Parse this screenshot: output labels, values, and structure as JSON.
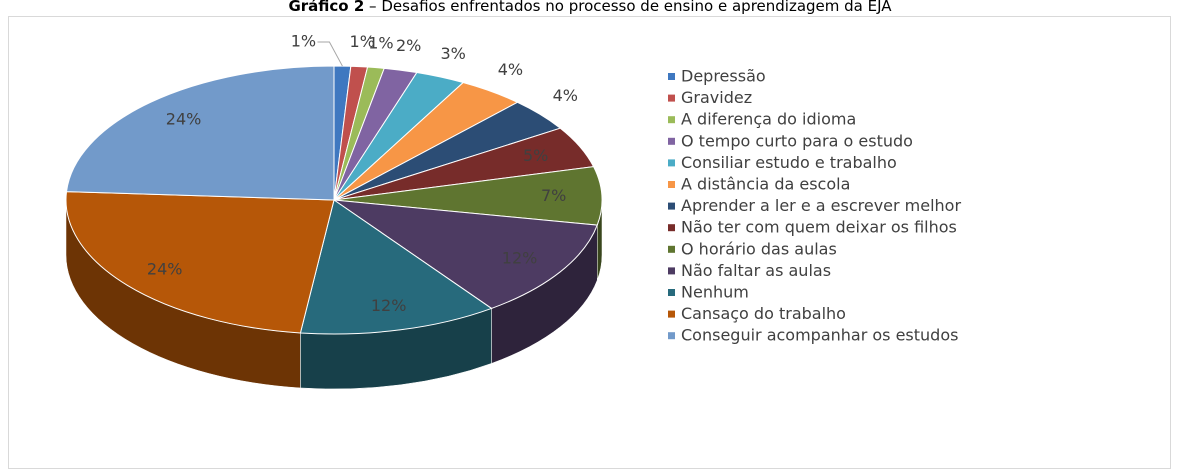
{
  "chart_data": {
    "type": "pie3d",
    "figure_label": "Gráfico 2",
    "title": "– Desafios enfrentados no processo de ensino e aprendizagem da EJA",
    "categories": [
      "Depressão",
      "Gravidez",
      "A diferença do idioma",
      "O tempo curto para o estudo",
      "Consiliar estudo e trabalho",
      "A distância da escola",
      "Aprender a ler e a escrever melhor",
      "Não ter com quem deixar os filhos",
      "O horário das aulas",
      "Não faltar as aulas",
      "Nenhum",
      "Cansaço do trabalho",
      "Conseguir acompanhar os estudos"
    ],
    "values": [
      1,
      1,
      1,
      2,
      3,
      4,
      4,
      5,
      7,
      12,
      12,
      24,
      24
    ],
    "value_labels": [
      "1%",
      "1%",
      "1%",
      "2%",
      "3%",
      "4%",
      "4%",
      "5%",
      "7%",
      "12%",
      "12%",
      "24%",
      "24%"
    ],
    "colors": [
      "#3f78c0",
      "#c0504d",
      "#9bbb59",
      "#8064a2",
      "#4bacc6",
      "#f79646",
      "#2c4d75",
      "#772c2a",
      "#5f7530",
      "#4d3b62",
      "#276a7c",
      "#b65708",
      "#729aca"
    ],
    "legend": "right"
  }
}
